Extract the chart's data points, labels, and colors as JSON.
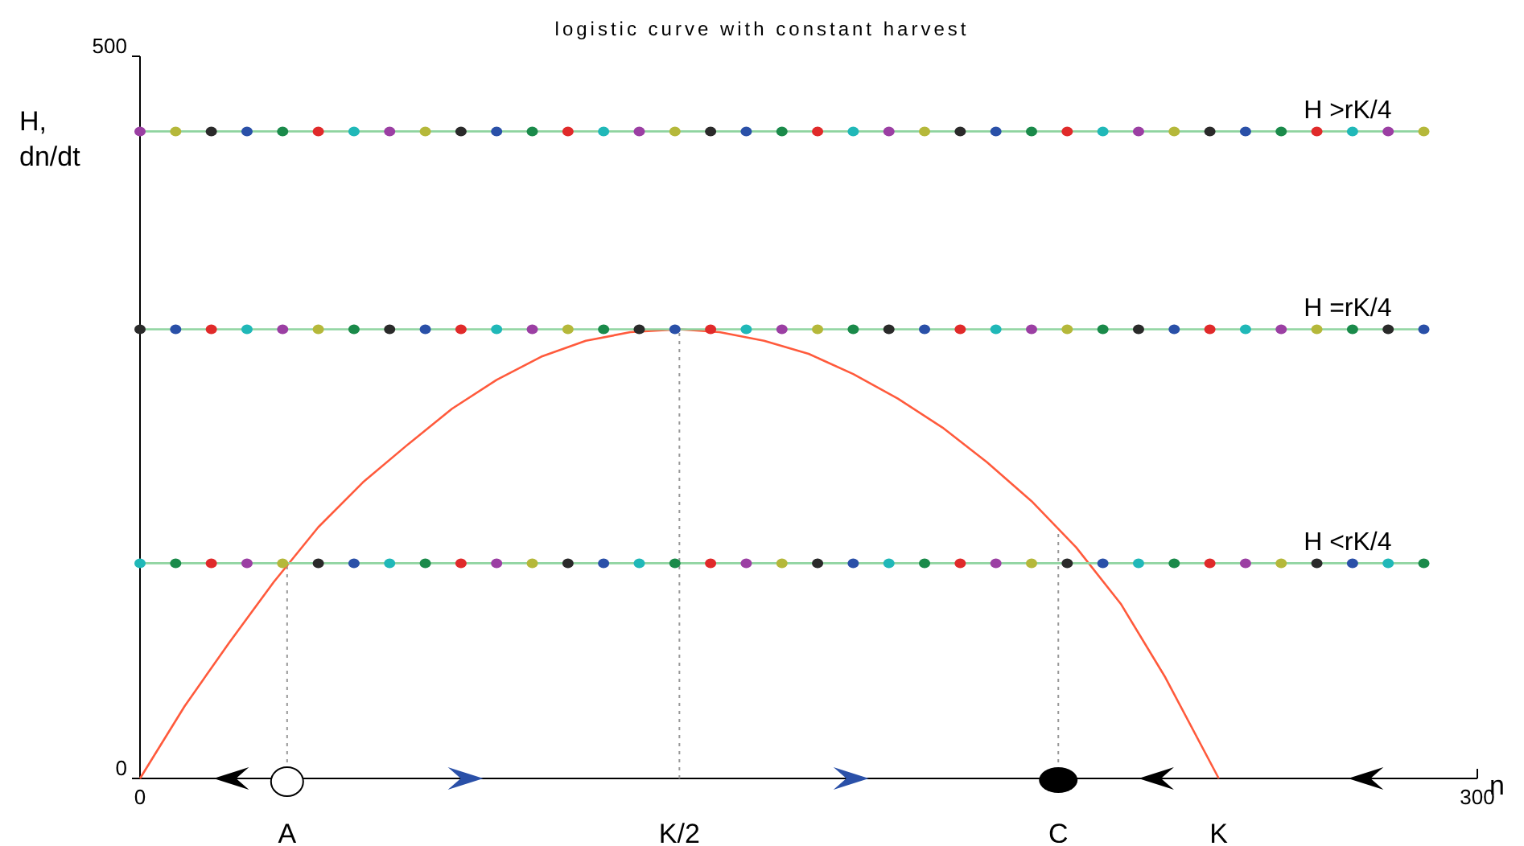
{
  "chart_data": {
    "type": "line",
    "title": "logistic curve with constant harvest",
    "xlabel": "n",
    "ylabel": "H,\ndn/dt",
    "xlim": [
      0,
      300
    ],
    "ylim": [
      0,
      500
    ],
    "xticks": [
      0,
      300
    ],
    "yticks": [
      0,
      500
    ],
    "grid": false,
    "annotations": [
      {
        "text": "A",
        "x": 33,
        "y": 0
      },
      {
        "text": "K/2",
        "x": 121,
        "y": 0
      },
      {
        "text": "C",
        "x": 206,
        "y": 0
      },
      {
        "text": "K",
        "x": 242,
        "y": 0
      }
    ],
    "ref_lines": [
      {
        "axis": "x",
        "value": 33,
        "color": "#999999",
        "line_style": "dotted"
      },
      {
        "axis": "x",
        "value": 121,
        "color": "#999999",
        "line_style": "dotted"
      },
      {
        "axis": "x",
        "value": 206,
        "color": "#999999",
        "line_style": "dotted"
      }
    ],
    "series": [
      {
        "color": "#ff5a3c",
        "marker": "none",
        "x": [
          0,
          10,
          20,
          30,
          40,
          50,
          60,
          70,
          80,
          90,
          100,
          110,
          121,
          130,
          140,
          150,
          160,
          170,
          180,
          190,
          200,
          210,
          220,
          230,
          242
        ],
        "values": [
          0,
          50,
          94,
          136,
          174,
          205,
          231,
          256,
          276,
          292,
          303,
          309,
          311,
          309,
          303,
          294,
          280,
          263,
          243,
          219,
          192,
          160,
          121,
          70,
          0
        ]
      },
      {
        "name": "H >rK/4",
        "color": "#8fd4a0",
        "marker": "circle",
        "x": [
          0,
          8,
          16,
          24,
          32,
          40,
          48,
          56,
          64,
          72,
          80,
          88,
          96,
          104,
          112,
          120,
          128,
          136,
          144,
          152,
          160,
          168,
          176,
          184,
          192,
          200,
          208,
          216,
          224,
          232,
          240,
          248,
          256,
          264,
          272,
          280,
          288
        ],
        "values": [
          448,
          448,
          448,
          448,
          448,
          448,
          448,
          448,
          448,
          448,
          448,
          448,
          448,
          448,
          448,
          448,
          448,
          448,
          448,
          448,
          448,
          448,
          448,
          448,
          448,
          448,
          448,
          448,
          448,
          448,
          448,
          448,
          448,
          448,
          448,
          448,
          448
        ],
        "colors": [
          "#9b3fa3",
          "#b5b83a",
          "#2a2a2a",
          "#2a50a8",
          "#1a8a4a",
          "#e02a2a",
          "#20b8b8",
          "#9b3fa3",
          "#b5b83a",
          "#2a2a2a",
          "#2a50a8",
          "#1a8a4a",
          "#e02a2a",
          "#20b8b8",
          "#9b3fa3",
          "#b5b83a",
          "#2a2a2a",
          "#2a50a8",
          "#1a8a4a",
          "#e02a2a",
          "#20b8b8",
          "#9b3fa3",
          "#b5b83a",
          "#2a2a2a",
          "#2a50a8",
          "#1a8a4a",
          "#e02a2a",
          "#20b8b8",
          "#9b3fa3",
          "#b5b83a",
          "#2a2a2a",
          "#2a50a8",
          "#1a8a4a",
          "#e02a2a",
          "#20b8b8",
          "#9b3fa3",
          "#b5b83a"
        ]
      },
      {
        "name": "H =rK/4",
        "color": "#8fd4a0",
        "marker": "circle",
        "x": [
          0,
          8,
          16,
          24,
          32,
          40,
          48,
          56,
          64,
          72,
          80,
          88,
          96,
          104,
          112,
          120,
          128,
          136,
          144,
          152,
          160,
          168,
          176,
          184,
          192,
          200,
          208,
          216,
          224,
          232,
          240,
          248,
          256,
          264,
          272,
          280,
          288
        ],
        "values": [
          311,
          311,
          311,
          311,
          311,
          311,
          311,
          311,
          311,
          311,
          311,
          311,
          311,
          311,
          311,
          311,
          311,
          311,
          311,
          311,
          311,
          311,
          311,
          311,
          311,
          311,
          311,
          311,
          311,
          311,
          311,
          311,
          311,
          311,
          311,
          311,
          311
        ],
        "colors": [
          "#2a2a2a",
          "#2a50a8",
          "#e02a2a",
          "#20b8b8",
          "#9b3fa3",
          "#b5b83a",
          "#1a8a4a",
          "#2a2a2a",
          "#2a50a8",
          "#e02a2a",
          "#20b8b8",
          "#9b3fa3",
          "#b5b83a",
          "#1a8a4a",
          "#2a2a2a",
          "#2a50a8",
          "#e02a2a",
          "#20b8b8",
          "#9b3fa3",
          "#b5b83a",
          "#1a8a4a",
          "#2a2a2a",
          "#2a50a8",
          "#e02a2a",
          "#20b8b8",
          "#9b3fa3",
          "#b5b83a",
          "#1a8a4a",
          "#2a2a2a",
          "#2a50a8",
          "#e02a2a",
          "#20b8b8",
          "#9b3fa3",
          "#b5b83a",
          "#1a8a4a",
          "#2a2a2a",
          "#2a50a8"
        ]
      },
      {
        "name": "H <rK/4",
        "color": "#8fd4a0",
        "marker": "circle",
        "x": [
          0,
          8,
          16,
          24,
          32,
          40,
          48,
          56,
          64,
          72,
          80,
          88,
          96,
          104,
          112,
          120,
          128,
          136,
          144,
          152,
          160,
          168,
          176,
          184,
          192,
          200,
          208,
          216,
          224,
          232,
          240,
          248,
          256,
          264,
          272,
          280,
          288
        ],
        "values": [
          149,
          149,
          149,
          149,
          149,
          149,
          149,
          149,
          149,
          149,
          149,
          149,
          149,
          149,
          149,
          149,
          149,
          149,
          149,
          149,
          149,
          149,
          149,
          149,
          149,
          149,
          149,
          149,
          149,
          149,
          149,
          149,
          149,
          149,
          149,
          149,
          149
        ],
        "colors": [
          "#20b8b8",
          "#1a8a4a",
          "#e02a2a",
          "#9b3fa3",
          "#b5b83a",
          "#2a2a2a",
          "#2a50a8",
          "#20b8b8",
          "#1a8a4a",
          "#e02a2a",
          "#9b3fa3",
          "#b5b83a",
          "#2a2a2a",
          "#2a50a8",
          "#20b8b8",
          "#1a8a4a",
          "#e02a2a",
          "#9b3fa3",
          "#b5b83a",
          "#2a2a2a",
          "#2a50a8",
          "#20b8b8",
          "#1a8a4a",
          "#e02a2a",
          "#9b3fa3",
          "#b5b83a",
          "#2a2a2a",
          "#2a50a8",
          "#20b8b8",
          "#1a8a4a",
          "#e02a2a",
          "#9b3fa3",
          "#b5b83a",
          "#2a2a2a",
          "#2a50a8",
          "#20b8b8",
          "#1a8a4a"
        ]
      }
    ]
  }
}
